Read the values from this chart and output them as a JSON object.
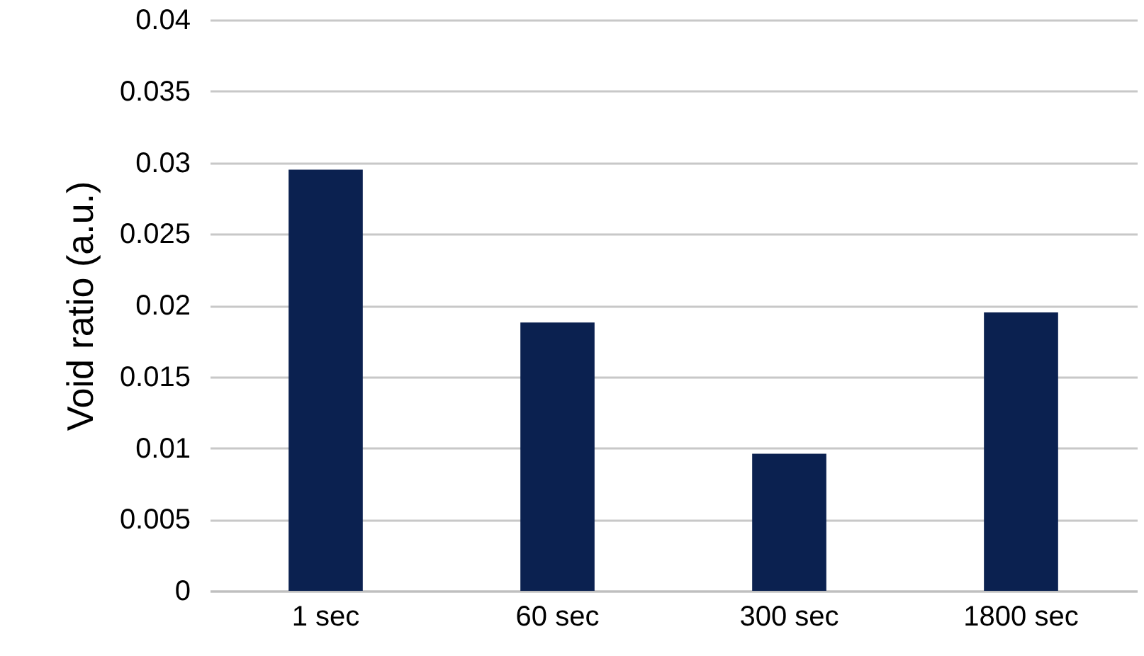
{
  "chart_data": {
    "type": "bar",
    "ylabel": "Void ratio (a.u.)",
    "categories": [
      "1 sec",
      "60 sec",
      "300 sec",
      "1800 sec"
    ],
    "values": [
      0.0295,
      0.0188,
      0.0096,
      0.0195
    ],
    "color": "#0b2150",
    "ylim": [
      0,
      0.04
    ],
    "yticks": [
      0,
      0.005,
      0.01,
      0.015,
      0.02,
      0.025,
      0.03,
      0.035,
      0.04
    ],
    "grid": "y"
  }
}
